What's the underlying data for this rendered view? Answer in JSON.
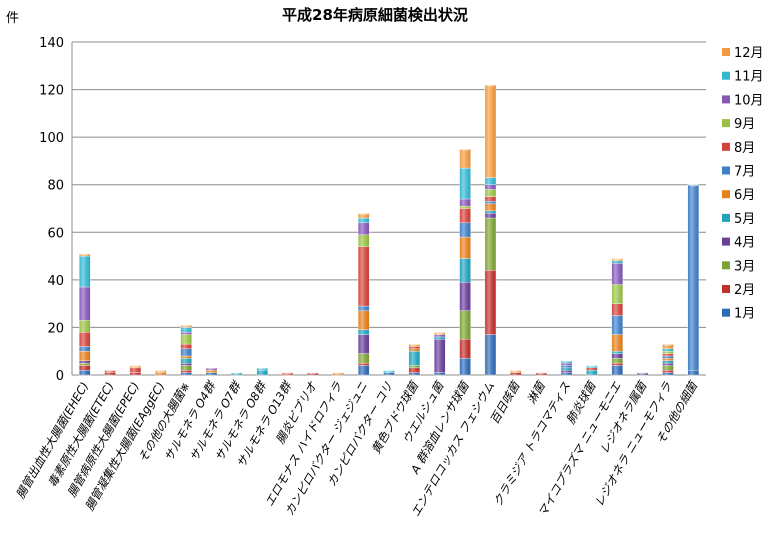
{
  "chart_data": {
    "type": "bar",
    "stacked": true,
    "title": "平成28年病原細菌検出状況",
    "ylabel": "件",
    "ylim": [
      0,
      140
    ],
    "yticks": [
      0,
      20,
      40,
      60,
      80,
      100,
      120,
      140
    ],
    "grid": true,
    "legend_position": "right",
    "categories": [
      "腸管出血性大腸菌(EHEC)",
      "毒素原性大腸菌(ETEC)",
      "腸管病原性大腸菌(EPEC)",
      "腸管凝集性大腸菌(EAggEC)",
      "その他の大腸菌※",
      "サルモネラ O4群",
      "サルモネラ O7群",
      "サルモネラ O8群",
      "サルモネラ O13群",
      "腸炎ビブリオ",
      "エロモナス ハイドロフィラ",
      "カンピロバクター ジェジュニ",
      "カンピロバクター コリ",
      "黄色ブドウ球菌",
      "ウエルシュ菌",
      "A 群溶血レンサ球菌",
      "エンテロコッカス フェシウム",
      "百日咳菌",
      "淋菌",
      "クラミジア トラコマティス",
      "肺炎球菌",
      "マイコプラズマ ニューモニエ",
      "レジオネラ属菌",
      "レジオネラ ニューモフィラ",
      "その他の細菌"
    ],
    "series": [
      {
        "name": "1月",
        "color": "#2e6bb5",
        "values": [
          2,
          0,
          0,
          0,
          1,
          1,
          0,
          0,
          0,
          0,
          0,
          4,
          1,
          1,
          1,
          7,
          17,
          0,
          0,
          1,
          0,
          4,
          0,
          1,
          2
        ]
      },
      {
        "name": "2月",
        "color": "#c0312c",
        "values": [
          2,
          1,
          1,
          0,
          1,
          0,
          0,
          0,
          0,
          1,
          0,
          1,
          0,
          2,
          0,
          8,
          27,
          1,
          1,
          0,
          0,
          1,
          0,
          1,
          0
        ]
      },
      {
        "name": "3月",
        "color": "#7ea335",
        "values": [
          1,
          0,
          0,
          0,
          2,
          0,
          0,
          0,
          0,
          0,
          0,
          4,
          0,
          1,
          0,
          12,
          22,
          0,
          0,
          0,
          0,
          2,
          0,
          2,
          0
        ]
      },
      {
        "name": "4月",
        "color": "#6a3f9a",
        "values": [
          1,
          0,
          0,
          0,
          1,
          0,
          0,
          0,
          0,
          0,
          0,
          8,
          0,
          0,
          14,
          12,
          2,
          0,
          0,
          1,
          0,
          2,
          1,
          1,
          0
        ]
      },
      {
        "name": "5月",
        "color": "#21a3bd",
        "values": [
          0,
          0,
          0,
          0,
          2,
          0,
          1,
          2,
          0,
          0,
          0,
          2,
          0,
          6,
          1,
          10,
          1,
          0,
          0,
          1,
          2,
          1,
          0,
          1,
          0
        ]
      },
      {
        "name": "6月",
        "color": "#e5801c",
        "values": [
          4,
          0,
          0,
          1,
          1,
          1,
          0,
          0,
          0,
          0,
          1,
          8,
          0,
          1,
          0,
          9,
          3,
          0,
          0,
          0,
          0,
          7,
          0,
          1,
          0
        ]
      },
      {
        "name": "7月",
        "color": "#3f7fc7",
        "values": [
          2,
          0,
          0,
          0,
          3,
          0,
          0,
          0,
          0,
          0,
          0,
          2,
          0,
          0,
          0,
          6,
          1,
          0,
          0,
          1,
          0,
          8,
          0,
          1,
          78
        ]
      },
      {
        "name": "8月",
        "color": "#d3423a",
        "values": [
          6,
          1,
          2,
          0,
          2,
          0,
          0,
          0,
          1,
          0,
          0,
          25,
          0,
          1,
          0,
          6,
          2,
          0,
          0,
          0,
          1,
          5,
          0,
          1,
          0
        ]
      },
      {
        "name": "9月",
        "color": "#99c145",
        "values": [
          5,
          0,
          0,
          0,
          4,
          0,
          0,
          0,
          0,
          0,
          0,
          5,
          0,
          0,
          0,
          1,
          3,
          0,
          0,
          0,
          0,
          8,
          0,
          1,
          0
        ]
      },
      {
        "name": "10月",
        "color": "#8658b8",
        "values": [
          14,
          0,
          0,
          0,
          1,
          1,
          0,
          0,
          0,
          0,
          0,
          5,
          0,
          0,
          1,
          3,
          2,
          0,
          0,
          1,
          0,
          9,
          0,
          0,
          0
        ]
      },
      {
        "name": "11月",
        "color": "#34b7d1",
        "values": [
          13,
          0,
          0,
          0,
          2,
          0,
          0,
          1,
          0,
          0,
          0,
          2,
          1,
          0,
          0,
          13,
          3,
          0,
          0,
          1,
          1,
          1,
          0,
          1,
          0
        ]
      },
      {
        "name": "12月",
        "color": "#f29a3d",
        "values": [
          1,
          0,
          1,
          1,
          1,
          0,
          0,
          0,
          0,
          0,
          0,
          2,
          0,
          1,
          1,
          8,
          39,
          1,
          0,
          0,
          0,
          1,
          0,
          2,
          0
        ]
      }
    ]
  }
}
